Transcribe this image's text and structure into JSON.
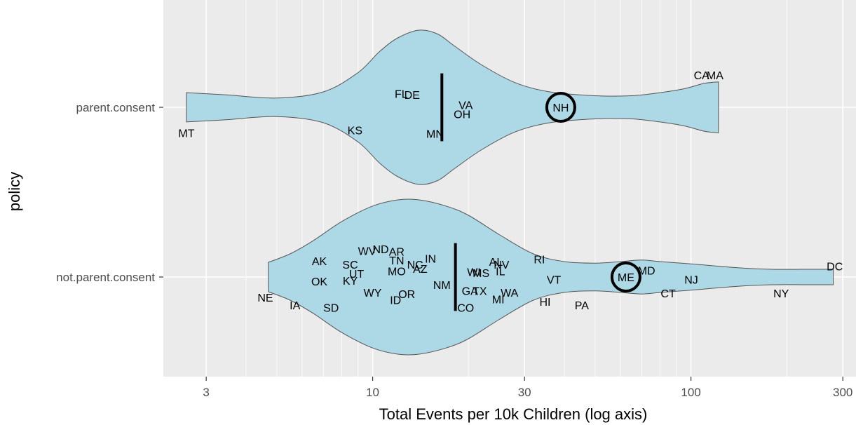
{
  "chart_data": {
    "type": "violin",
    "xlabel": "Total Events per 10k Children (log axis)",
    "ylabel": "policy",
    "x_scale": "log10",
    "xlim": [
      2.2,
      330
    ],
    "x_ticks": [
      3,
      10,
      30,
      100,
      300
    ],
    "x_tick_labels": [
      "3",
      "10",
      "30",
      "100",
      "300"
    ],
    "x_minor_ticks": [
      4,
      5,
      6,
      7,
      8,
      9,
      20,
      40,
      50,
      60,
      70,
      80,
      90,
      200
    ],
    "categories": [
      "parent.consent",
      "not.parent.consent"
    ],
    "colors": {
      "panel": "#ebebeb",
      "grid": "#ffffff",
      "violin_fill": "#add8e6",
      "violin_outline": "#555555",
      "median": "#000000",
      "highlight": "#000000"
    },
    "grid": true,
    "violins": [
      {
        "category": "parent.consent",
        "median": 16.5,
        "median_extent": 0.4,
        "density": [
          [
            2.6,
            0.19
          ],
          [
            3.5,
            0.16
          ],
          [
            5,
            0.12
          ],
          [
            7,
            0.2
          ],
          [
            9,
            0.45
          ],
          [
            10.5,
            0.72
          ],
          [
            12,
            0.9
          ],
          [
            14,
            1.0
          ],
          [
            16,
            0.95
          ],
          [
            18,
            0.8
          ],
          [
            22,
            0.55
          ],
          [
            28,
            0.32
          ],
          [
            36,
            0.2
          ],
          [
            50,
            0.15
          ],
          [
            65,
            0.15
          ],
          [
            80,
            0.19
          ],
          [
            95,
            0.24
          ],
          [
            110,
            0.31
          ],
          [
            122,
            0.33
          ]
        ],
        "points": [
          {
            "label": "MT",
            "x": 2.6,
            "jitter": -0.3
          },
          {
            "label": "FL",
            "x": 12.3,
            "jitter": 0.16
          },
          {
            "label": "DE",
            "x": 13.3,
            "jitter": 0.15
          },
          {
            "label": "KS",
            "x": 8.8,
            "jitter": -0.27
          },
          {
            "label": "MN",
            "x": 15.7,
            "jitter": -0.31
          },
          {
            "label": "VA",
            "x": 19.6,
            "jitter": 0.03
          },
          {
            "label": "OH",
            "x": 19.1,
            "jitter": -0.08
          },
          {
            "label": "NH",
            "x": 39,
            "jitter": 0.0,
            "highlight": true
          },
          {
            "label": "CA",
            "x": 108,
            "jitter": 0.38
          },
          {
            "label": "MA",
            "x": 119,
            "jitter": 0.38
          }
        ]
      },
      {
        "category": "not.parent.consent",
        "median": 18.2,
        "median_extent": 0.4,
        "density": [
          [
            4.7,
            0.19
          ],
          [
            5.5,
            0.3
          ],
          [
            6.5,
            0.47
          ],
          [
            8,
            0.72
          ],
          [
            10,
            0.92
          ],
          [
            12,
            1.0
          ],
          [
            14,
            1.0
          ],
          [
            17,
            0.92
          ],
          [
            20,
            0.8
          ],
          [
            25,
            0.55
          ],
          [
            32,
            0.3
          ],
          [
            40,
            0.2
          ],
          [
            50,
            0.18
          ],
          [
            60,
            0.2
          ],
          [
            70,
            0.22
          ],
          [
            80,
            0.2
          ],
          [
            100,
            0.17
          ],
          [
            140,
            0.12
          ],
          [
            180,
            0.1
          ],
          [
            230,
            0.1
          ],
          [
            280,
            0.1
          ]
        ],
        "points": [
          {
            "label": "NE",
            "x": 4.6,
            "jitter": -0.24
          },
          {
            "label": "IA",
            "x": 5.7,
            "jitter": -0.33
          },
          {
            "label": "AK",
            "x": 6.8,
            "jitter": 0.19
          },
          {
            "label": "OK",
            "x": 6.8,
            "jitter": -0.05
          },
          {
            "label": "SD",
            "x": 7.4,
            "jitter": -0.36
          },
          {
            "label": "SC",
            "x": 8.5,
            "jitter": 0.15
          },
          {
            "label": "KY",
            "x": 8.5,
            "jitter": -0.04
          },
          {
            "label": "UT",
            "x": 8.9,
            "jitter": 0.04
          },
          {
            "label": "WV",
            "x": 9.6,
            "jitter": 0.31
          },
          {
            "label": "WY",
            "x": 10,
            "jitter": -0.18
          },
          {
            "label": "ND",
            "x": 10.6,
            "jitter": 0.33
          },
          {
            "label": "AR",
            "x": 11.9,
            "jitter": 0.3
          },
          {
            "label": "MO",
            "x": 11.9,
            "jitter": 0.07
          },
          {
            "label": "TN",
            "x": 11.9,
            "jitter": 0.2
          },
          {
            "label": "ID",
            "x": 11.8,
            "jitter": -0.27
          },
          {
            "label": "OR",
            "x": 12.8,
            "jitter": -0.2
          },
          {
            "label": "NC",
            "x": 13.6,
            "jitter": 0.15
          },
          {
            "label": "AZ",
            "x": 14.1,
            "jitter": 0.1
          },
          {
            "label": "IN",
            "x": 15.2,
            "jitter": 0.22
          },
          {
            "label": "NM",
            "x": 16.5,
            "jitter": -0.09
          },
          {
            "label": "CO",
            "x": 19.6,
            "jitter": -0.36
          },
          {
            "label": "GA",
            "x": 20.2,
            "jitter": -0.16
          },
          {
            "label": "TX",
            "x": 21.7,
            "jitter": -0.16
          },
          {
            "label": "WI",
            "x": 20.8,
            "jitter": 0.06
          },
          {
            "label": "MS",
            "x": 21.9,
            "jitter": 0.05
          },
          {
            "label": "AL",
            "x": 24.4,
            "jitter": 0.18
          },
          {
            "label": "NV",
            "x": 25.4,
            "jitter": 0.15
          },
          {
            "label": "IL",
            "x": 25.2,
            "jitter": 0.07
          },
          {
            "label": "MI",
            "x": 24.8,
            "jitter": -0.26
          },
          {
            "label": "WA",
            "x": 26.9,
            "jitter": -0.18
          },
          {
            "label": "RI",
            "x": 33.4,
            "jitter": 0.21
          },
          {
            "label": "HI",
            "x": 34.8,
            "jitter": -0.29
          },
          {
            "label": "VT",
            "x": 37.1,
            "jitter": -0.03
          },
          {
            "label": "PA",
            "x": 45.4,
            "jitter": -0.33
          },
          {
            "label": "ME",
            "x": 62.5,
            "jitter": 0.0,
            "highlight": true
          },
          {
            "label": "MD",
            "x": 72.5,
            "jitter": 0.08
          },
          {
            "label": "CT",
            "x": 84.8,
            "jitter": -0.19
          },
          {
            "label": "NJ",
            "x": 100.2,
            "jitter": -0.03
          },
          {
            "label": "NY",
            "x": 192,
            "jitter": -0.19
          },
          {
            "label": "DC",
            "x": 283,
            "jitter": 0.13
          }
        ]
      }
    ]
  }
}
